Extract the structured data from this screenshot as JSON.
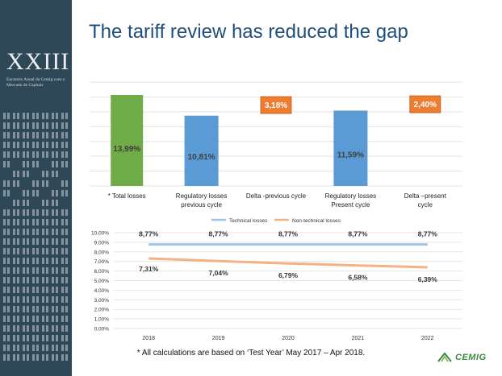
{
  "slide": {
    "title": "The tariff review has reduced the gap",
    "footnote": "* All calculations are based on ‘Test Year’ May 2017 – Apr 2018.",
    "brand": "CEMIG",
    "sidebar_logo": "XXIII",
    "sidebar_subtitle": "Encontro Anual da Cemig com o Mercado de Capitais"
  },
  "chart_data": [
    {
      "type": "bar",
      "categories": [
        "* Total losses",
        "Regulatory losses previous cycle",
        "Delta -previous cycle",
        "Regulatory losses Present cycle",
        "Delta –present cycle"
      ],
      "values": [
        13.99,
        10.81,
        3.18,
        11.59,
        2.4
      ],
      "data_labels": [
        "13,99%",
        "10,81%",
        "3,18%",
        "11,59%",
        "2,40%"
      ],
      "bar_colors": [
        "#6fab46",
        "#5b9bd5",
        "#ed7d31",
        "#5b9bd5",
        "#ed7d31"
      ],
      "grid": true
    },
    {
      "type": "line",
      "x": [
        "2018",
        "2019",
        "2020",
        "2021",
        "2022"
      ],
      "series": [
        {
          "name": "Technical losses",
          "values": [
            8.77,
            8.77,
            8.77,
            8.77,
            8.77
          ],
          "labels": [
            "8,77%",
            "8,77%",
            "8,77%",
            "8,77%",
            "8,77%"
          ],
          "color": "#9dc3e6"
        },
        {
          "name": "Non-technical losses",
          "values": [
            7.31,
            7.04,
            6.79,
            6.58,
            6.39
          ],
          "labels": [
            "7,31%",
            "7,04%",
            "6,79%",
            "6,58%",
            "6,39%"
          ],
          "color": "#f4b183"
        }
      ],
      "ylim": [
        0,
        10
      ],
      "yticks": [
        "0,00%",
        "1,00%",
        "2,00%",
        "3,00%",
        "4,00%",
        "5,00%",
        "6,00%",
        "7,00%",
        "8,00%",
        "9,00%",
        "10,00%"
      ],
      "legend": "top-center",
      "grid": true
    }
  ]
}
